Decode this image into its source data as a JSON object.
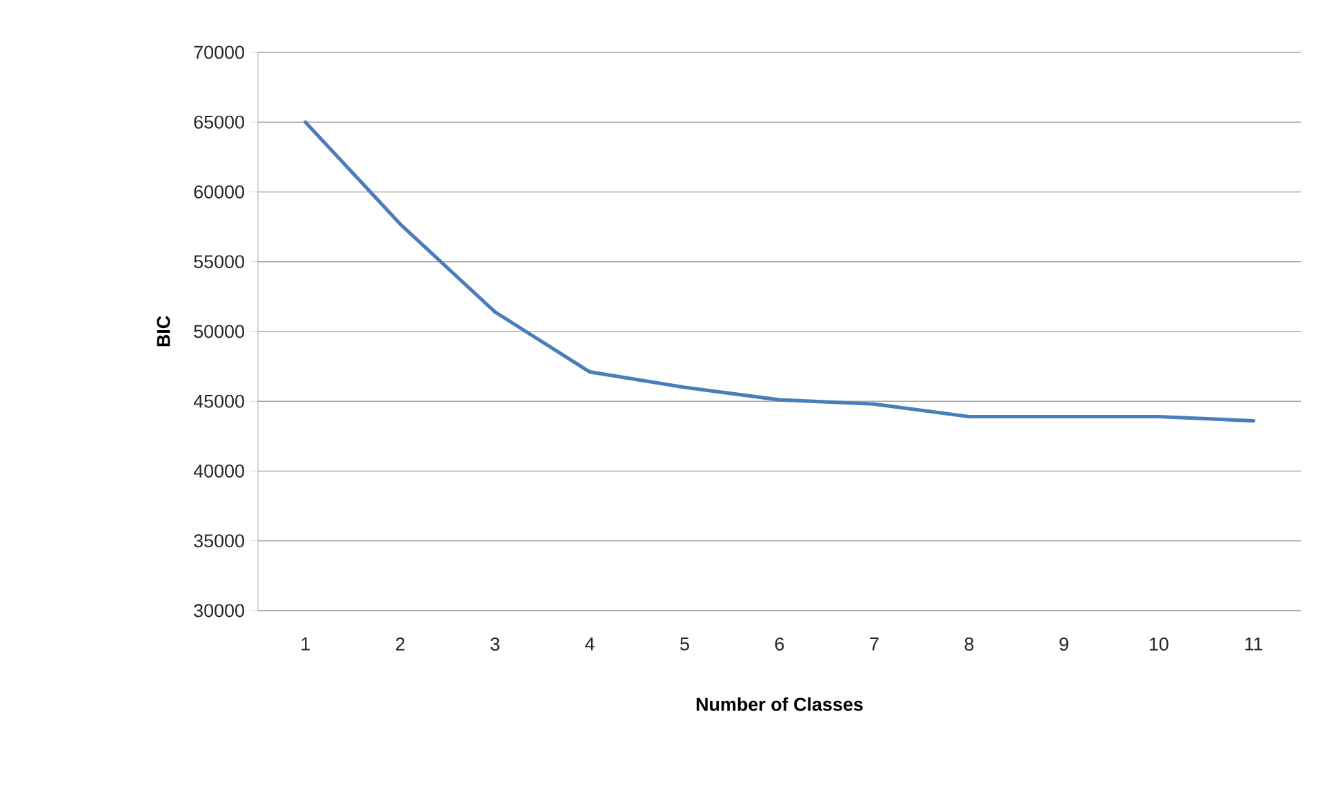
{
  "chart_data": {
    "type": "line",
    "xlabel": "Number of Classes",
    "ylabel": "BIC",
    "categories": [
      "1",
      "2",
      "3",
      "4",
      "5",
      "6",
      "7",
      "8",
      "9",
      "10",
      "11"
    ],
    "series": [
      {
        "color": "#4a7ebb",
        "values": [
          65000,
          57700,
          51400,
          47100,
          46000,
          45100,
          44800,
          43900,
          43900,
          43900,
          43600
        ]
      }
    ],
    "ylim": [
      30000,
      70000
    ],
    "yticks": [
      30000,
      35000,
      40000,
      45000,
      50000,
      55000,
      60000,
      65000,
      70000
    ],
    "grid": "y",
    "marker": "none",
    "line_style": "solid"
  }
}
